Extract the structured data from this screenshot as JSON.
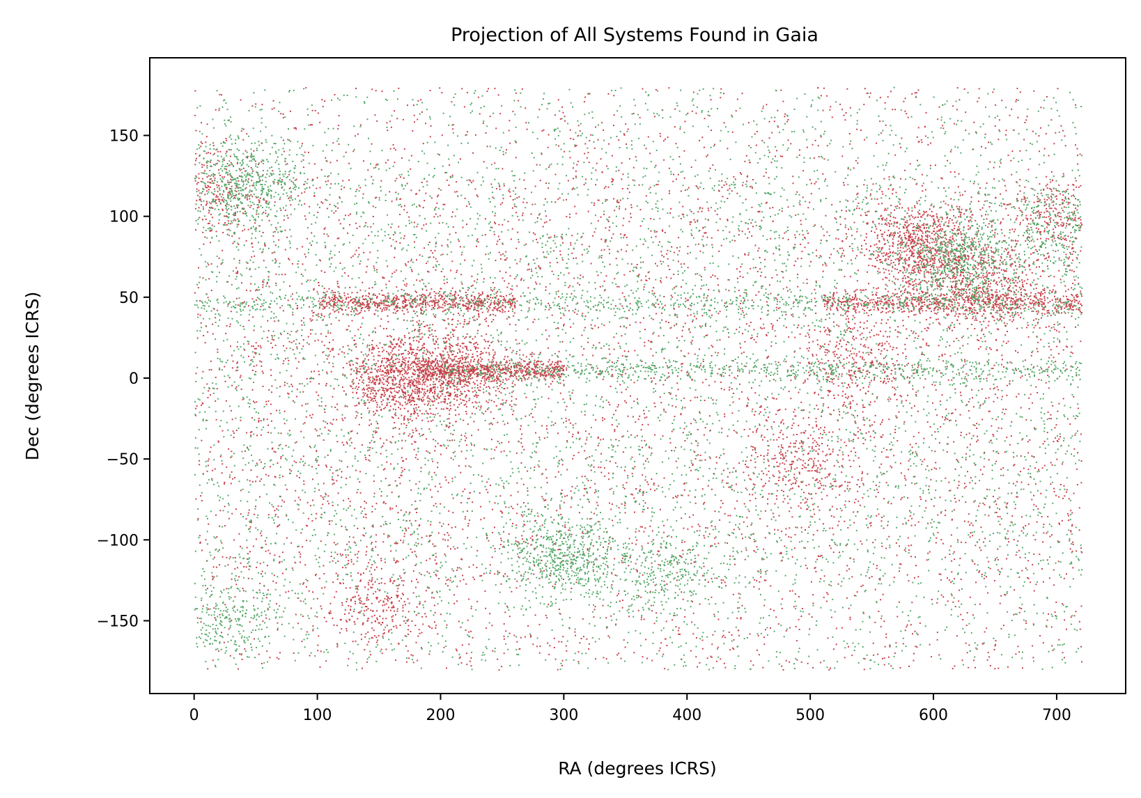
{
  "chart_data": {
    "type": "scatter",
    "title": "Projection of All Systems Found in Gaia",
    "xlabel": "RA (degrees ICRS)",
    "ylabel": "Dec (degrees ICRS)",
    "xlim": [
      -36,
      756
    ],
    "ylim": [
      -195,
      198
    ],
    "xticks": [
      0,
      100,
      200,
      300,
      400,
      500,
      600,
      700
    ],
    "yticks": [
      -150,
      -100,
      -50,
      0,
      50,
      100,
      150
    ],
    "xtick_labels": [
      "0",
      "100",
      "200",
      "300",
      "400",
      "500",
      "600",
      "700"
    ],
    "ytick_labels": [
      "−150",
      "−100",
      "−50",
      "0",
      "50",
      "100",
      "150"
    ],
    "grid": false,
    "legend": "none",
    "data_extent": {
      "ra": [
        0,
        720
      ],
      "dec": [
        -180,
        180
      ]
    },
    "series": [
      {
        "color": "#c8424b",
        "density_clusters": [
          {
            "ra": 165,
            "dec": 0,
            "weight": 3
          },
          {
            "ra": 210,
            "dec": 5,
            "weight": 2
          },
          {
            "ra": 590,
            "dec": 80,
            "weight": 3
          },
          {
            "ra": 640,
            "dec": 60,
            "weight": 2
          },
          {
            "ra": 490,
            "dec": -50,
            "weight": 1
          },
          {
            "ra": 150,
            "dec": -140,
            "weight": 1
          },
          {
            "ra": 20,
            "dec": 115,
            "weight": 1
          },
          {
            "ra": 540,
            "dec": 10,
            "weight": 1
          },
          {
            "ra": 700,
            "dec": 100,
            "weight": 1
          }
        ],
        "density_bands": [
          {
            "dec": 47,
            "ra_range": [
              100,
              260
            ]
          },
          {
            "dec": 47,
            "ra_range": [
              510,
              720
            ]
          },
          {
            "dec": 5,
            "ra_range": [
              180,
              300
            ]
          }
        ]
      },
      {
        "color": "#55a868",
        "density_clusters": [
          {
            "ra": 30,
            "dec": -147,
            "weight": 1
          },
          {
            "ra": 40,
            "dec": 120,
            "weight": 2
          },
          {
            "ra": 300,
            "dec": -110,
            "weight": 2
          },
          {
            "ra": 620,
            "dec": 75,
            "weight": 2
          },
          {
            "ra": 380,
            "dec": -120,
            "weight": 1
          },
          {
            "ra": 700,
            "dec": 90,
            "weight": 1
          }
        ],
        "density_bands": [
          {
            "dec": 47,
            "ra_range": [
              0,
              720
            ]
          },
          {
            "dec": 5,
            "ra_range": [
              200,
              720
            ]
          }
        ]
      }
    ]
  }
}
